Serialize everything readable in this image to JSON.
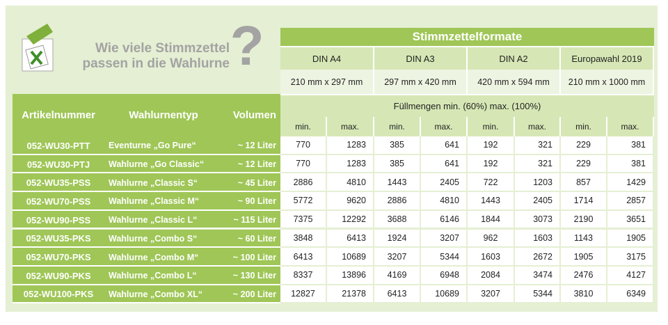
{
  "header": {
    "title_lines": [
      "Wie viele Stimmzettel",
      "passen in die Wahlurne"
    ],
    "question": "?"
  },
  "table": {
    "title": "Stimmzettelformate",
    "formats": [
      {
        "name": "DIN A4",
        "size": "210 mm x 297 mm"
      },
      {
        "name": "DIN A3",
        "size": "297 mm x 420 mm"
      },
      {
        "name": "DIN A2",
        "size": "420 mm x 594 mm"
      },
      {
        "name": "Europawahl 2019",
        "size": "210 mm  x 1000 mm"
      }
    ],
    "fill_label": "Füllmengen min. (60%) max. (100%)",
    "col_headers": [
      "Artikelnummer",
      "Wahlurnentyp",
      "Volumen"
    ],
    "sub_headers": [
      "min.",
      "max."
    ],
    "rows": [
      [
        "052-WU30-PTT",
        "Eventurne „Go Pure“",
        "~ 12 Liter",
        770,
        1283,
        385,
        641,
        192,
        321,
        229,
        381
      ],
      [
        "052-WU30-PTJ",
        "Wahlurne „Go Classic“",
        "~ 12 Liter",
        770,
        1283,
        385,
        641,
        192,
        321,
        229,
        381
      ],
      [
        "052-WU35-PSS",
        "Wahlurne „Classic S“",
        "~ 45 Liter",
        2886,
        4810,
        1443,
        2405,
        722,
        1203,
        857,
        1429
      ],
      [
        "052-WU70-PSS",
        "Wahlurne „Classic M“",
        "~ 90 Liter",
        5772,
        9620,
        2886,
        4810,
        1443,
        2405,
        1714,
        2857
      ],
      [
        "052-WU90-PSS",
        "Wahlurne „Classic L“",
        "~ 115 Liter",
        7375,
        12292,
        3688,
        6146,
        1844,
        3073,
        2190,
        3651
      ],
      [
        "052-WU35-PKS",
        "Wahlurne „Combo S“",
        "~ 60 Liter",
        3848,
        6413,
        1924,
        3207,
        962,
        1603,
        1143,
        1905
      ],
      [
        "052-WU70-PKS",
        "Wahlurne „Combo M“",
        "~ 100 Liter",
        6413,
        10689,
        3207,
        5344,
        1603,
        2672,
        1905,
        3175
      ],
      [
        "052-WU90-PKS",
        "Wahlurne „Combo L“",
        "~ 130 Liter",
        8337,
        13896,
        4169,
        6948,
        2084,
        3474,
        2476,
        4127
      ],
      [
        "052-WU100-PKS",
        "Wahlurne „Combo XL“",
        "~ 200 Liter",
        12827,
        21378,
        6413,
        10689,
        3207,
        5344,
        3810,
        6349
      ]
    ]
  }
}
